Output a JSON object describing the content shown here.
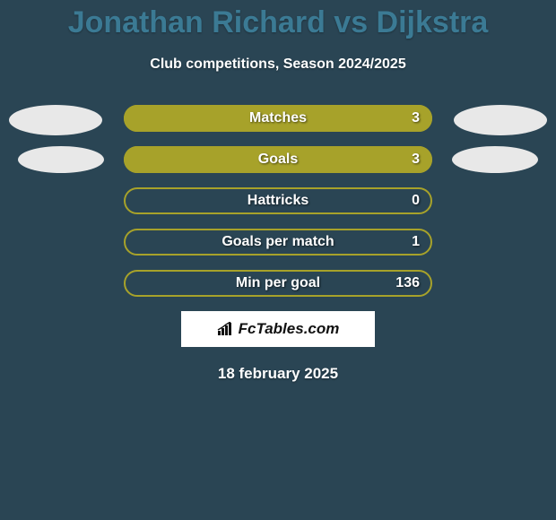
{
  "title": "Jonathan Richard vs Dijkstra",
  "subtitle": "Club competitions, Season 2024/2025",
  "footer_date": "18 february 2025",
  "branding": {
    "label": "FcTables.com"
  },
  "colors": {
    "fill": "#a7a22a",
    "outline": "#a7a22a",
    "background": "#2a4554",
    "title": "#3b7a94",
    "text": "#ffffff",
    "blob": "#e8e8e8"
  },
  "bars": [
    {
      "label": "Matches",
      "value": "3",
      "fill_pct": 100
    },
    {
      "label": "Goals",
      "value": "3",
      "fill_pct": 100
    },
    {
      "label": "Hattricks",
      "value": "0",
      "fill_pct": 0
    },
    {
      "label": "Goals per match",
      "value": "1",
      "fill_pct": 0
    },
    {
      "label": "Min per goal",
      "value": "136",
      "fill_pct": 0
    }
  ]
}
